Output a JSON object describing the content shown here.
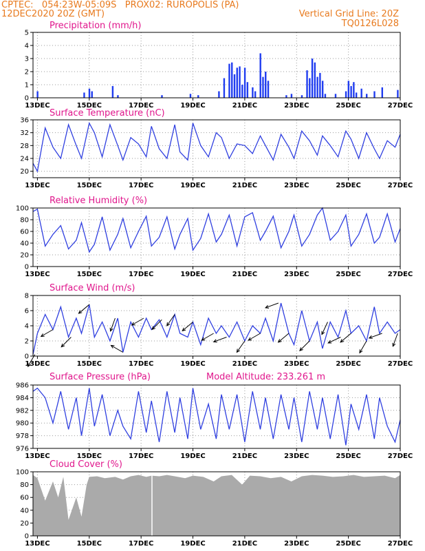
{
  "header": {
    "line1": "CPTEC:   054:23W-05:09S   PROX02: RUROPOLIS (PA)",
    "line2": "12DEC2020 20Z (GMT)",
    "grid_note": "Vertical Grid Line: 20Z",
    "code": "TQ0126L028"
  },
  "date_ticks": [
    "13DEC",
    "15DEC",
    "17DEC",
    "19DEC",
    "21DEC",
    "23DEC",
    "25DEC",
    "27DEC"
  ],
  "colors": {
    "line": "#2f3fe0",
    "bar": "#1f3cf0",
    "cloud": "#aaaaaa",
    "title": "#e0168c",
    "header": "#e87a1e",
    "wind_arrow": "#000000"
  },
  "chart_data": [
    {
      "type": "bar",
      "title": "Precipitation (mm/h)",
      "x_range": [
        12.83,
        27.0
      ],
      "ylim": [
        0,
        5
      ],
      "yticks": [
        0,
        1,
        2,
        3,
        4,
        5
      ],
      "grid": true,
      "x": [
        13.0,
        14.8,
        15.0,
        15.1,
        15.9,
        16.1,
        17.8,
        18.9,
        19.2,
        20.0,
        20.2,
        20.4,
        20.5,
        20.6,
        20.7,
        20.8,
        20.9,
        21.0,
        21.1,
        21.3,
        21.4,
        21.6,
        21.7,
        21.8,
        21.9,
        22.6,
        22.8,
        23.2,
        23.4,
        23.5,
        23.6,
        23.7,
        23.8,
        23.9,
        24.0,
        24.1,
        24.5,
        24.9,
        25.0,
        25.1,
        25.2,
        25.3,
        25.5,
        25.7,
        26.0,
        26.3,
        26.9
      ],
      "values": [
        0.5,
        0.4,
        0.7,
        0.5,
        0.9,
        0.2,
        0.2,
        0.3,
        0.2,
        0.5,
        1.5,
        2.6,
        2.7,
        1.8,
        2.3,
        2.4,
        1.0,
        2.3,
        1.2,
        0.8,
        0.5,
        3.4,
        1.6,
        2.0,
        1.3,
        0.2,
        0.3,
        0.2,
        2.1,
        1.5,
        3.0,
        2.7,
        1.6,
        1.9,
        1.3,
        0.3,
        0.3,
        0.5,
        1.3,
        0.9,
        1.2,
        0.4,
        0.7,
        0.3,
        0.5,
        0.8,
        0.6
      ]
    },
    {
      "type": "line",
      "title": "Surface Temperature (nC)",
      "x_range": [
        12.83,
        27.0
      ],
      "ylim": [
        18,
        36
      ],
      "yticks": [
        20,
        24,
        28,
        32,
        36
      ],
      "grid": true,
      "x": [
        12.83,
        13.0,
        13.3,
        13.6,
        13.9,
        14.2,
        14.5,
        14.7,
        15.0,
        15.2,
        15.5,
        15.8,
        16.1,
        16.3,
        16.6,
        16.9,
        17.2,
        17.4,
        17.7,
        18.0,
        18.3,
        18.5,
        18.8,
        19.0,
        19.3,
        19.6,
        19.9,
        20.1,
        20.4,
        20.7,
        21.0,
        21.3,
        21.6,
        21.8,
        22.1,
        22.4,
        22.7,
        22.9,
        23.2,
        23.5,
        23.8,
        24.0,
        24.3,
        24.6,
        24.9,
        25.1,
        25.4,
        25.7,
        26.0,
        26.2,
        26.5,
        26.8,
        27.0
      ],
      "values": [
        22.5,
        20.0,
        33.5,
        27.5,
        24.0,
        34.5,
        28.0,
        24.0,
        35.0,
        32.0,
        24.5,
        34.5,
        28.0,
        23.5,
        30.5,
        28.5,
        24.5,
        34.0,
        27.0,
        24.0,
        34.5,
        26.0,
        23.5,
        35.0,
        28.0,
        24.5,
        32.0,
        30.5,
        24.0,
        28.5,
        28.0,
        25.5,
        31.0,
        28.0,
        23.5,
        31.5,
        27.5,
        24.0,
        32.5,
        29.5,
        25.0,
        31.0,
        28.0,
        24.5,
        32.5,
        30.0,
        24.0,
        32.0,
        27.0,
        24.0,
        29.5,
        27.5,
        31.5
      ]
    },
    {
      "type": "line",
      "title": "Relative Humidity (%)",
      "x_range": [
        12.83,
        27.0
      ],
      "ylim": [
        0,
        100
      ],
      "yticks": [
        0,
        20,
        40,
        60,
        80,
        100
      ],
      "grid": true,
      "x": [
        12.83,
        13.0,
        13.3,
        13.6,
        13.9,
        14.2,
        14.5,
        14.7,
        15.0,
        15.2,
        15.5,
        15.8,
        16.1,
        16.3,
        16.6,
        16.9,
        17.2,
        17.4,
        17.7,
        18.0,
        18.3,
        18.5,
        18.8,
        19.0,
        19.3,
        19.6,
        19.9,
        20.1,
        20.4,
        20.7,
        21.0,
        21.3,
        21.6,
        21.8,
        22.1,
        22.4,
        22.7,
        22.9,
        23.2,
        23.5,
        23.8,
        24.0,
        24.3,
        24.6,
        24.9,
        25.1,
        25.4,
        25.7,
        26.0,
        26.2,
        26.5,
        26.8,
        27.0
      ],
      "values": [
        94,
        98,
        35,
        55,
        70,
        30,
        45,
        75,
        25,
        38,
        85,
        28,
        55,
        82,
        32,
        60,
        86,
        35,
        50,
        85,
        30,
        55,
        82,
        28,
        48,
        90,
        42,
        55,
        88,
        35,
        85,
        92,
        45,
        60,
        86,
        32,
        60,
        88,
        35,
        55,
        88,
        100,
        45,
        60,
        88,
        35,
        55,
        90,
        40,
        50,
        90,
        42,
        65
      ]
    },
    {
      "type": "line",
      "title": "Surface Wind (m/s)",
      "x_range": [
        12.83,
        27.0
      ],
      "ylim": [
        0,
        8
      ],
      "yticks": [
        0,
        2,
        4,
        6,
        8
      ],
      "grid": true,
      "x": [
        12.83,
        13.0,
        13.3,
        13.6,
        13.9,
        14.2,
        14.5,
        14.7,
        15.0,
        15.2,
        15.5,
        15.8,
        16.1,
        16.3,
        16.6,
        16.9,
        17.2,
        17.4,
        17.7,
        18.0,
        18.3,
        18.5,
        18.8,
        19.0,
        19.3,
        19.6,
        19.9,
        20.1,
        20.4,
        20.7,
        21.0,
        21.3,
        21.6,
        21.8,
        22.1,
        22.4,
        22.7,
        22.9,
        23.2,
        23.5,
        23.8,
        24.0,
        24.3,
        24.6,
        24.9,
        25.1,
        25.4,
        25.7,
        26.0,
        26.2,
        26.5,
        26.8,
        27.0
      ],
      "values": [
        0.2,
        3.0,
        5.5,
        3.5,
        6.5,
        2.5,
        5.0,
        3.0,
        6.8,
        2.5,
        4.5,
        2.0,
        5.0,
        0.5,
        4.5,
        2.5,
        5.0,
        3.5,
        4.8,
        2.5,
        5.5,
        3.0,
        2.5,
        4.5,
        1.5,
        5.0,
        3.0,
        4.0,
        2.5,
        4.5,
        2.0,
        4.0,
        3.0,
        5.0,
        2.0,
        7.0,
        3.0,
        1.5,
        6.0,
        2.0,
        4.5,
        1.0,
        4.5,
        2.5,
        6.0,
        3.0,
        4.0,
        2.0,
        6.5,
        3.0,
        4.5,
        3.0,
        3.5
      ],
      "arrows": {
        "x": [
          12.9,
          13.6,
          14.3,
          15.0,
          16.0,
          16.3,
          17.1,
          17.8,
          18.3,
          19.0,
          19.8,
          20.3,
          21.0,
          21.6,
          22.3,
          22.7,
          23.5,
          24.2,
          24.7,
          25.1,
          25.7,
          26.3,
          26.9
        ],
        "direction_deg": [
          210,
          240,
          225,
          230,
          200,
          300,
          240,
          225,
          215,
          230,
          240,
          250,
          215,
          240,
          250,
          230,
          225,
          205,
          245,
          230,
          210,
          250,
          200
        ]
      }
    },
    {
      "type": "line",
      "title": "Surface Pressure (hPa)",
      "model_altitude": "Model Altitude: 233.261 m",
      "x_range": [
        12.83,
        27.0
      ],
      "ylim": [
        976,
        986
      ],
      "yticks": [
        976,
        978,
        980,
        982,
        984,
        986
      ],
      "grid": true,
      "x": [
        12.83,
        13.0,
        13.3,
        13.6,
        13.9,
        14.2,
        14.5,
        14.7,
        15.0,
        15.2,
        15.5,
        15.8,
        16.1,
        16.3,
        16.6,
        16.9,
        17.2,
        17.4,
        17.7,
        18.0,
        18.3,
        18.5,
        18.8,
        19.0,
        19.3,
        19.6,
        19.9,
        20.1,
        20.4,
        20.7,
        21.0,
        21.3,
        21.6,
        21.8,
        22.1,
        22.4,
        22.7,
        22.9,
        23.2,
        23.5,
        23.8,
        24.0,
        24.3,
        24.6,
        24.9,
        25.1,
        25.4,
        25.7,
        26.0,
        26.2,
        26.5,
        26.8,
        27.0
      ],
      "values": [
        985.0,
        985.5,
        984.0,
        980.0,
        985.0,
        979.0,
        984.0,
        978.0,
        985.5,
        979.5,
        984.5,
        978.0,
        982.0,
        979.5,
        977.5,
        985.0,
        978.5,
        983.5,
        977.0,
        985.0,
        978.5,
        984.0,
        977.5,
        985.5,
        979.0,
        983.0,
        977.5,
        984.5,
        979.0,
        984.5,
        977.0,
        985.0,
        979.0,
        984.0,
        977.5,
        984.5,
        979.0,
        984.0,
        977.0,
        985.0,
        979.0,
        984.0,
        977.5,
        984.5,
        976.5,
        983.0,
        979.0,
        984.5,
        977.5,
        984.0,
        979.5,
        977.0,
        980.5
      ]
    },
    {
      "type": "area",
      "title": "Cloud Cover (%)",
      "x_range": [
        12.83,
        27.0
      ],
      "ylim": [
        0,
        100
      ],
      "yticks": [
        0,
        20,
        40,
        60,
        80,
        100
      ],
      "grid": true,
      "x": [
        12.83,
        13.0,
        13.3,
        13.6,
        13.8,
        14.0,
        14.2,
        14.5,
        14.7,
        14.9,
        15.0,
        15.3,
        15.6,
        16.0,
        16.3,
        16.6,
        16.9,
        17.2,
        17.4,
        17.7,
        18.0,
        18.3,
        18.7,
        19.0,
        19.4,
        19.8,
        20.1,
        20.5,
        20.9,
        21.2,
        21.6,
        22.0,
        22.4,
        22.8,
        23.2,
        23.6,
        24.0,
        24.4,
        24.8,
        25.2,
        25.6,
        26.0,
        26.4,
        26.8,
        27.0
      ],
      "values": [
        95,
        90,
        55,
        85,
        60,
        92,
        25,
        60,
        30,
        80,
        92,
        93,
        90,
        92,
        88,
        93,
        95,
        92,
        94,
        93,
        95,
        93,
        90,
        94,
        92,
        85,
        93,
        95,
        80,
        94,
        93,
        90,
        92,
        85,
        93,
        95,
        94,
        92,
        93,
        95,
        92,
        93,
        94,
        90,
        95
      ]
    }
  ]
}
